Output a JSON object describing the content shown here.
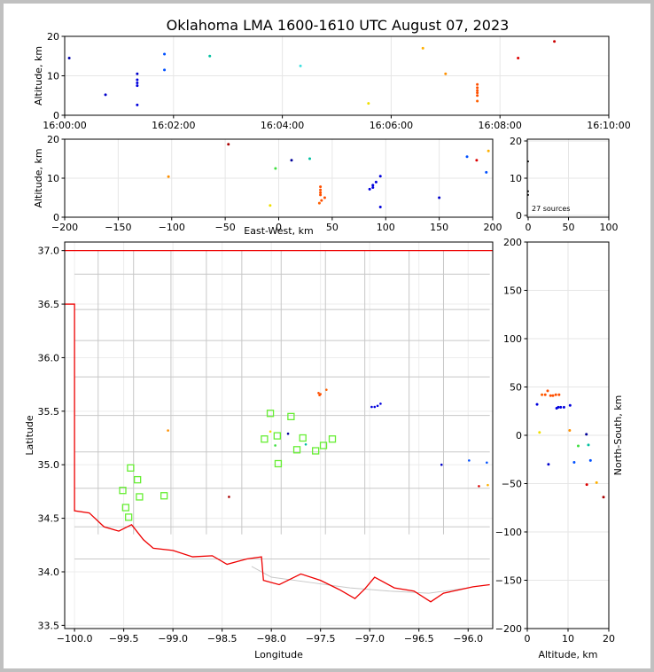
{
  "title": "Oklahoma LMA 1600-1610 UTC August 07, 2023",
  "source_count": "27 sources",
  "chart_data": [
    {
      "id": "time_height",
      "type": "scatter",
      "xlabel": "",
      "ylabel": "Altitude, km",
      "xlim": [
        "16:00:00",
        "16:10:00"
      ],
      "ylim": [
        0,
        20
      ],
      "x_ticks": [
        "16:00:00",
        "16:02:00",
        "16:04:00",
        "16:06:00",
        "16:08:00",
        "16:10:00"
      ],
      "y_ticks": [
        "0",
        "10",
        "20"
      ],
      "points": [
        {
          "t": "16:00:05",
          "z": 14.5,
          "color": "#0000aa"
        },
        {
          "t": "16:00:45",
          "z": 5.2,
          "color": "#0000cc"
        },
        {
          "t": "16:01:20",
          "z": 10.5,
          "color": "#0000cc"
        },
        {
          "t": "16:01:20",
          "z": 9.0,
          "color": "#0000dd"
        },
        {
          "t": "16:01:20",
          "z": 8.2,
          "color": "#0000dd"
        },
        {
          "t": "16:01:20",
          "z": 7.5,
          "color": "#0000dd"
        },
        {
          "t": "16:01:20",
          "z": 2.6,
          "color": "#0000dd"
        },
        {
          "t": "16:01:50",
          "z": 15.5,
          "color": "#0050ff"
        },
        {
          "t": "16:01:50",
          "z": 11.5,
          "color": "#0050ff"
        },
        {
          "t": "16:02:40",
          "z": 15.0,
          "color": "#00c0a0"
        },
        {
          "t": "16:04:20",
          "z": 12.5,
          "color": "#40e0e0"
        },
        {
          "t": "16:05:35",
          "z": 3.0,
          "color": "#f0e000"
        },
        {
          "t": "16:06:35",
          "z": 17.0,
          "color": "#ffb000"
        },
        {
          "t": "16:07:00",
          "z": 10.5,
          "color": "#ff9000"
        },
        {
          "t": "16:07:35",
          "z": 7.8,
          "color": "#ff5000"
        },
        {
          "t": "16:07:35",
          "z": 7.0,
          "color": "#ff5000"
        },
        {
          "t": "16:07:35",
          "z": 6.3,
          "color": "#ff5000"
        },
        {
          "t": "16:07:35",
          "z": 5.7,
          "color": "#ff5000"
        },
        {
          "t": "16:07:35",
          "z": 5.0,
          "color": "#ff5000"
        },
        {
          "t": "16:07:35",
          "z": 3.6,
          "color": "#ff6000"
        },
        {
          "t": "16:08:20",
          "z": 14.5,
          "color": "#dd0000"
        },
        {
          "t": "16:09:00",
          "z": 18.7,
          "color": "#cc0000"
        }
      ]
    },
    {
      "id": "ew_height",
      "type": "scatter",
      "xlabel": "East-West, km",
      "ylabel": "Altitude, km",
      "xlim": [
        -200,
        200
      ],
      "ylim": [
        0,
        20
      ],
      "x_ticks": [
        "−200",
        "−150",
        "−100",
        "−50",
        "0",
        "50",
        "100",
        "150",
        "200"
      ],
      "y_ticks": [
        "0",
        "10",
        "20"
      ],
      "points": [
        {
          "x": -103,
          "z": 10.4,
          "color": "#ff9000"
        },
        {
          "x": -47,
          "z": 18.7,
          "color": "#aa0000"
        },
        {
          "x": -8,
          "z": 3.0,
          "color": "#f0e000"
        },
        {
          "x": -3,
          "z": 12.5,
          "color": "#40e040"
        },
        {
          "x": 12,
          "z": 14.6,
          "color": "#000099"
        },
        {
          "x": 29,
          "z": 15.0,
          "color": "#00c0a0"
        },
        {
          "x": 38,
          "z": 3.6,
          "color": "#ff6000"
        },
        {
          "x": 39,
          "z": 7.8,
          "color": "#ff5000"
        },
        {
          "x": 39,
          "z": 7.0,
          "color": "#ff5000"
        },
        {
          "x": 39,
          "z": 6.3,
          "color": "#ff5000"
        },
        {
          "x": 39,
          "z": 5.7,
          "color": "#ff5000"
        },
        {
          "x": 40,
          "z": 4.3,
          "color": "#ff5000"
        },
        {
          "x": 43,
          "z": 5.0,
          "color": "#ff5000"
        },
        {
          "x": 85,
          "z": 7.2,
          "color": "#0000dd"
        },
        {
          "x": 88,
          "z": 8.2,
          "color": "#0000dd"
        },
        {
          "x": 88,
          "z": 7.6,
          "color": "#0000dd"
        },
        {
          "x": 91,
          "z": 9.0,
          "color": "#0000dd"
        },
        {
          "x": 95,
          "z": 10.5,
          "color": "#0000dd"
        },
        {
          "x": 95,
          "z": 2.6,
          "color": "#0000dd"
        },
        {
          "x": 150,
          "z": 5.0,
          "color": "#0000cc"
        },
        {
          "x": 176,
          "z": 15.5,
          "color": "#0050ff"
        },
        {
          "x": 185,
          "z": 14.6,
          "color": "#dd0000"
        },
        {
          "x": 194,
          "z": 11.5,
          "color": "#0050ff"
        },
        {
          "x": 196,
          "z": 17.0,
          "color": "#ffb000"
        }
      ]
    },
    {
      "id": "histogram",
      "type": "scatter",
      "xlim": [
        0,
        100
      ],
      "ylim": [
        0,
        20
      ],
      "x_ticks": [
        "0",
        "50",
        "100"
      ],
      "y_ticks": [
        "0",
        "10",
        "20"
      ],
      "points": [
        {
          "x": 0,
          "z": 14.5,
          "color": "#000000"
        },
        {
          "x": 0,
          "z": 6.5,
          "color": "#000000"
        },
        {
          "x": 0,
          "z": 5.5,
          "color": "#000000"
        }
      ]
    },
    {
      "id": "plan_view",
      "type": "scatter",
      "xlabel": "Longitude",
      "ylabel": "Latitude",
      "xlim": [
        -100.1,
        -95.75
      ],
      "ylim": [
        33.47,
        37.08
      ],
      "x_ticks": [
        "−100.0",
        "−99.5",
        "−99.0",
        "−98.5",
        "−98.0",
        "−97.5",
        "−97.0",
        "−96.5",
        "−96.0"
      ],
      "y_ticks": [
        "33.5",
        "34.0",
        "34.5",
        "35.0",
        "35.5",
        "36.0",
        "36.5",
        "37.0"
      ],
      "stations": [
        {
          "lon": -99.51,
          "lat": 34.76
        },
        {
          "lon": -99.48,
          "lat": 34.6
        },
        {
          "lon": -99.45,
          "lat": 34.51
        },
        {
          "lon": -99.43,
          "lat": 34.97
        },
        {
          "lon": -99.36,
          "lat": 34.86
        },
        {
          "lon": -99.34,
          "lat": 34.7
        },
        {
          "lon": -99.09,
          "lat": 34.71
        },
        {
          "lon": -98.07,
          "lat": 35.24
        },
        {
          "lon": -98.01,
          "lat": 35.48
        },
        {
          "lon": -97.94,
          "lat": 35.27
        },
        {
          "lon": -97.93,
          "lat": 35.01
        },
        {
          "lon": -97.8,
          "lat": 35.45
        },
        {
          "lon": -97.74,
          "lat": 35.14
        },
        {
          "lon": -97.68,
          "lat": 35.25
        },
        {
          "lon": -97.55,
          "lat": 35.13
        },
        {
          "lon": -97.47,
          "lat": 35.18
        },
        {
          "lon": -97.38,
          "lat": 35.24
        }
      ],
      "points": [
        {
          "lon": -99.05,
          "lat": 35.32,
          "color": "#ff9000"
        },
        {
          "lon": -98.43,
          "lat": 34.7,
          "color": "#aa0000"
        },
        {
          "lon": -98.01,
          "lat": 35.31,
          "color": "#f0e000"
        },
        {
          "lon": -97.96,
          "lat": 35.18,
          "color": "#40e040"
        },
        {
          "lon": -97.83,
          "lat": 35.29,
          "color": "#000099"
        },
        {
          "lon": -97.65,
          "lat": 35.19,
          "color": "#00c0a0"
        },
        {
          "lon": -97.52,
          "lat": 35.67,
          "color": "#ff5000"
        },
        {
          "lon": -97.51,
          "lat": 35.65,
          "color": "#ff5000"
        },
        {
          "lon": -97.5,
          "lat": 35.66,
          "color": "#ff5000"
        },
        {
          "lon": -97.44,
          "lat": 35.7,
          "color": "#ff6000"
        },
        {
          "lon": -96.98,
          "lat": 35.54,
          "color": "#0000dd"
        },
        {
          "lon": -96.95,
          "lat": 35.54,
          "color": "#0000dd"
        },
        {
          "lon": -96.92,
          "lat": 35.55,
          "color": "#0000dd"
        },
        {
          "lon": -96.89,
          "lat": 35.57,
          "color": "#0000dd"
        },
        {
          "lon": -96.27,
          "lat": 35.0,
          "color": "#0000cc"
        },
        {
          "lon": -95.99,
          "lat": 35.04,
          "color": "#0050ff"
        },
        {
          "lon": -95.89,
          "lat": 34.8,
          "color": "#dd0000"
        },
        {
          "lon": -95.81,
          "lat": 35.02,
          "color": "#0050ff"
        },
        {
          "lon": -95.8,
          "lat": 34.81,
          "color": "#ffb000"
        }
      ]
    },
    {
      "id": "ns_height",
      "type": "scatter",
      "xlabel": "Altitude, km",
      "ylabel": "North-South, km",
      "xlim": [
        0,
        20
      ],
      "ylim": [
        -200,
        200
      ],
      "x_ticks": [
        "0",
        "10",
        "20"
      ],
      "y_ticks": [
        "−200",
        "−150",
        "−100",
        "−50",
        "0",
        "50",
        "100",
        "150",
        "200"
      ],
      "points": [
        {
          "z": 2.4,
          "y": 32,
          "color": "#0000dd"
        },
        {
          "z": 3.0,
          "y": 3,
          "color": "#f0e000"
        },
        {
          "z": 3.6,
          "y": 42,
          "color": "#ff6000"
        },
        {
          "z": 4.4,
          "y": 42,
          "color": "#ff5000"
        },
        {
          "z": 5.0,
          "y": 46,
          "color": "#ff5000"
        },
        {
          "z": 5.2,
          "y": -30,
          "color": "#0000cc"
        },
        {
          "z": 5.7,
          "y": 41,
          "color": "#ff5000"
        },
        {
          "z": 6.3,
          "y": 41,
          "color": "#ff5000"
        },
        {
          "z": 7.0,
          "y": 42,
          "color": "#ff5000"
        },
        {
          "z": 7.2,
          "y": 28,
          "color": "#0000dd"
        },
        {
          "z": 7.6,
          "y": 29,
          "color": "#0000dd"
        },
        {
          "z": 7.8,
          "y": 42,
          "color": "#ff5000"
        },
        {
          "z": 8.2,
          "y": 29,
          "color": "#0000dd"
        },
        {
          "z": 9.0,
          "y": 29,
          "color": "#0000dd"
        },
        {
          "z": 10.4,
          "y": 5,
          "color": "#ff9000"
        },
        {
          "z": 10.5,
          "y": 31,
          "color": "#0000dd"
        },
        {
          "z": 11.5,
          "y": -28,
          "color": "#0050ff"
        },
        {
          "z": 12.5,
          "y": -11,
          "color": "#40e040"
        },
        {
          "z": 14.5,
          "y": 1,
          "color": "#000099"
        },
        {
          "z": 14.6,
          "y": -51,
          "color": "#dd0000"
        },
        {
          "z": 15.0,
          "y": -10,
          "color": "#00c0a0"
        },
        {
          "z": 15.5,
          "y": -26,
          "color": "#0050ff"
        },
        {
          "z": 17.0,
          "y": -49,
          "color": "#ffb000"
        },
        {
          "z": 18.7,
          "y": -64,
          "color": "#aa0000"
        }
      ]
    }
  ]
}
